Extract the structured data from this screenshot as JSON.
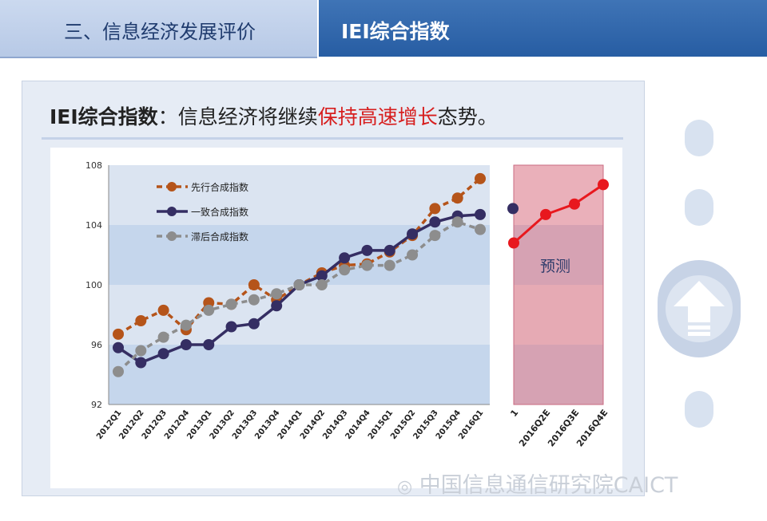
{
  "header": {
    "section_tab": "三、信息经济发展评价",
    "active_tab": "IEI综合指数"
  },
  "headline": {
    "keyword": "IEI综合指数",
    "separator": "：",
    "prefix": "信息经济将继续",
    "highlight": "保持高速增长",
    "suffix": "态势。"
  },
  "watermark": {
    "icon": "wechat-icon",
    "text": "中国信息通信研究院CAICT"
  },
  "colors": {
    "leading": "#b5541a",
    "coincident": "#352e63",
    "lagging": "#8d8d8d",
    "forecast": "#e8181e",
    "forecast_bg": "#e9a6b3"
  },
  "chart_data": {
    "type": "line",
    "categories": [
      "2012Q1",
      "2012Q2",
      "2012Q3",
      "2012Q4",
      "2013Q1",
      "2013Q2",
      "2013Q3",
      "2013Q4",
      "2014Q1",
      "2014Q2",
      "2014Q3",
      "2014Q4",
      "2015Q1",
      "2015Q2",
      "2015Q3",
      "2015Q4",
      "2016Q1"
    ],
    "ylim": [
      92,
      108
    ],
    "yticks": [
      92,
      96,
      100,
      104,
      108
    ],
    "grid": "horizontal bands",
    "legend_position": "top-left",
    "series": [
      {
        "name": "先行合成指数",
        "values": [
          96.7,
          97.6,
          98.3,
          97.0,
          98.8,
          98.7,
          100.0,
          99.0,
          100.0,
          100.8,
          101.3,
          101.4,
          102.2,
          103.3,
          105.1,
          105.8,
          107.1
        ]
      },
      {
        "name": "一致合成指数",
        "values": [
          95.8,
          94.8,
          95.4,
          96.0,
          96.0,
          97.2,
          97.4,
          98.6,
          100.0,
          100.6,
          101.8,
          102.3,
          102.3,
          103.4,
          104.2,
          104.6,
          104.7
        ]
      },
      {
        "name": "滞后合成指数",
        "values": [
          94.2,
          95.6,
          96.5,
          97.3,
          98.3,
          98.7,
          99.0,
          99.4,
          100.0,
          100.0,
          101.0,
          101.3,
          101.3,
          102.0,
          103.3,
          104.2,
          103.7
        ]
      }
    ],
    "forecast": {
      "label": "预测",
      "partial_tick": "1",
      "categories": [
        "2016Q2E",
        "2016Q3E",
        "2016Q4E"
      ],
      "values": [
        104.7,
        105.4,
        106.7
      ],
      "cut_value": 102.8,
      "coincident_partial": 105.1
    }
  }
}
